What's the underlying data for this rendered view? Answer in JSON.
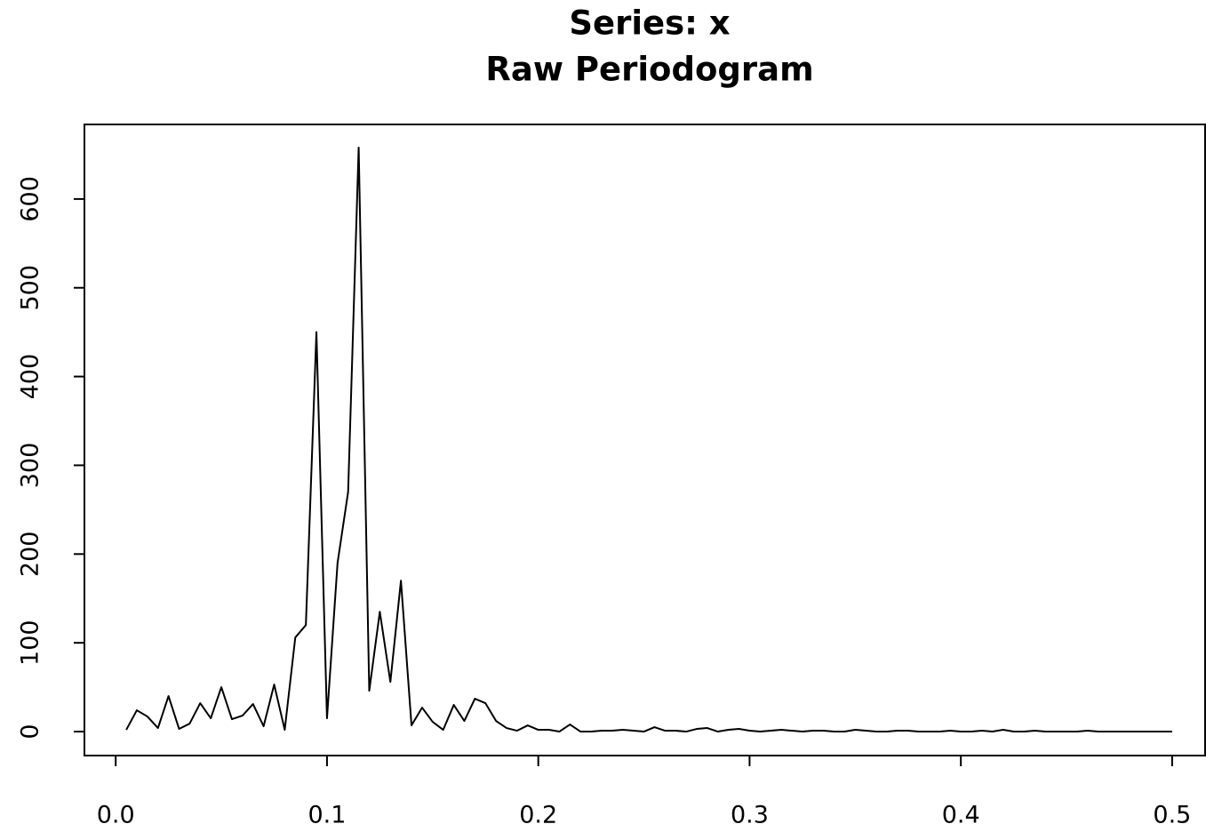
{
  "chart_data": {
    "type": "line",
    "title": "Series: x",
    "subtitle": "Raw Periodogram",
    "color": "#000000",
    "x": [
      0.005,
      0.01,
      0.015,
      0.02,
      0.025,
      0.03,
      0.035,
      0.04,
      0.045,
      0.05,
      0.055,
      0.06,
      0.065,
      0.07,
      0.075,
      0.08,
      0.085,
      0.09,
      0.095,
      0.1,
      0.105,
      0.11,
      0.115,
      0.12,
      0.125,
      0.13,
      0.135,
      0.14,
      0.145,
      0.15,
      0.155,
      0.16,
      0.165,
      0.17,
      0.175,
      0.18,
      0.185,
      0.19,
      0.195,
      0.2,
      0.205,
      0.21,
      0.215,
      0.22,
      0.225,
      0.23,
      0.235,
      0.24,
      0.245,
      0.25,
      0.255,
      0.26,
      0.265,
      0.27,
      0.275,
      0.28,
      0.285,
      0.29,
      0.295,
      0.3,
      0.305,
      0.31,
      0.315,
      0.32,
      0.325,
      0.33,
      0.335,
      0.34,
      0.345,
      0.35,
      0.355,
      0.36,
      0.365,
      0.37,
      0.375,
      0.38,
      0.385,
      0.39,
      0.395,
      0.4,
      0.405,
      0.41,
      0.415,
      0.42,
      0.425,
      0.43,
      0.435,
      0.44,
      0.445,
      0.45,
      0.455,
      0.46,
      0.465,
      0.47,
      0.475,
      0.48,
      0.485,
      0.49,
      0.495,
      0.5
    ],
    "values": [
      2,
      24,
      17,
      4,
      40,
      3,
      9,
      32,
      15,
      50,
      14,
      18,
      31,
      6,
      53,
      2,
      106,
      120,
      450,
      15,
      190,
      270,
      658,
      46,
      135,
      56,
      170,
      7,
      27,
      11,
      2,
      30,
      12,
      37,
      32,
      12,
      4,
      1,
      7,
      2,
      2,
      0,
      8,
      0,
      0,
      1,
      1,
      2,
      1,
      0,
      5,
      1,
      1,
      0,
      3,
      4,
      0,
      2,
      3,
      1,
      0,
      1,
      2,
      1,
      0,
      1,
      1,
      0,
      0,
      2,
      1,
      0,
      0,
      1,
      1,
      0,
      0,
      0,
      1,
      0,
      0,
      1,
      0,
      2,
      0,
      0,
      1,
      0,
      0,
      0,
      0,
      1,
      0,
      0,
      0,
      0,
      0,
      0,
      0,
      0
    ],
    "xlim": [
      -0.0148,
      0.5156
    ],
    "ylim": [
      -27,
      684
    ],
    "xticks": [
      {
        "value": 0,
        "label": "0.0"
      },
      0.1,
      0.2,
      0.3,
      0.4,
      0.5
    ],
    "yticks": [
      0,
      100,
      200,
      300,
      400,
      500,
      600
    ]
  }
}
